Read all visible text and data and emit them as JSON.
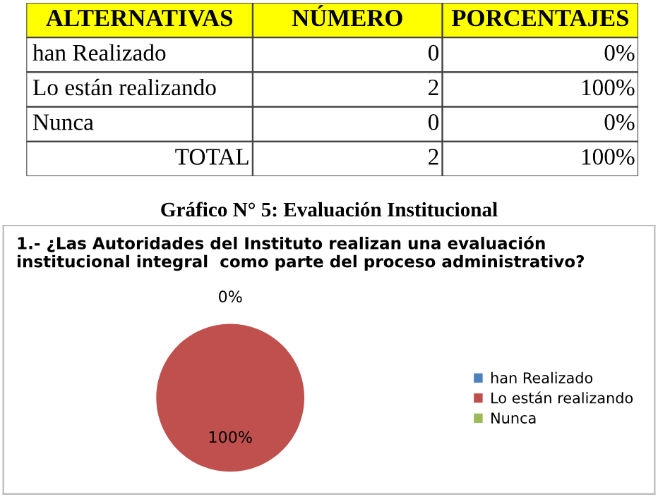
{
  "chart_data": [
    {
      "type": "other",
      "xlabel": "ALTERNATIVAS",
      "data_labels": true,
      "categories": [
        "han Realizado",
        "Lo están realizando",
        "Nunca",
        "TOTAL"
      ],
      "series": [
        {
          "name": "NÚMERO",
          "values": [
            0,
            2,
            0,
            2
          ]
        },
        {
          "name": "PORCENTAJES",
          "values": [
            0,
            100,
            0,
            100
          ],
          "value_labels": [
            "0%",
            "100%",
            "0%",
            "100%"
          ]
        }
      ]
    },
    {
      "type": "pie",
      "title": "Gráfico N° 5: Evaluación Institucional",
      "subtitle": "1.- ¿Las Autoridades del Instituto realizan una evaluación institucional integral  como parte del proceso administrativo?",
      "categories": [
        "han Realizado",
        "Lo están realizando",
        "Nunca"
      ],
      "values": [
        0,
        100,
        0
      ],
      "colors": [
        "#4f81bd",
        "#c0504d",
        "#9bbb59"
      ],
      "value_labels": [
        "0%",
        "100%",
        null
      ],
      "legend": "right"
    }
  ]
}
